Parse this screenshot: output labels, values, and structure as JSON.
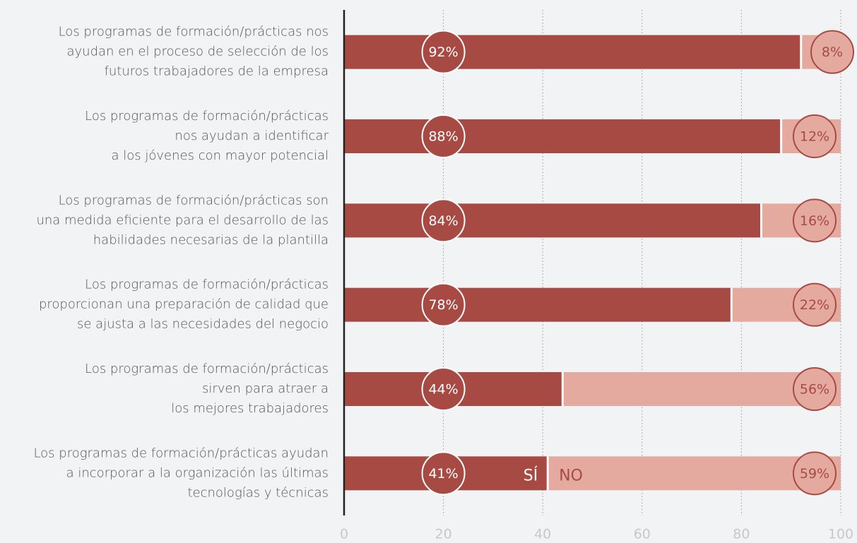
{
  "chart_data": {
    "type": "stacked_bar_horizontal",
    "categories": [
      "Los programas de formación/prácticas nos\nayudan en el proceso de selección de los\nfuturos trabajadores de la empresa",
      "Los programas de formación/prácticas\nnos ayudan a identificar\na los jóvenes con mayor potencial",
      "Los programas de formación/prácticas son\nuna medida eficiente para el desarrollo de las\nhabilidades necesarias de la plantilla",
      "Los programas de formación/prácticas\nproporcionan una preparación de calidad que\nse ajusta a las necesidades del negocio",
      "Los programas de formación/prácticas\nsirven para atraer a\nlos mejores trabajadores",
      "Los programas de formación/prácticas ayudan\na incorporar a la organización las últimas\ntecnologías y técnicas"
    ],
    "series": [
      {
        "name": "SÍ",
        "color": "#a84a44",
        "values": [
          92,
          88,
          84,
          78,
          44,
          41
        ],
        "value_labels": [
          "92%",
          "88%",
          "84%",
          "78%",
          "44%",
          "41%"
        ]
      },
      {
        "name": "NO",
        "color": "#e5aa9f",
        "values": [
          8,
          12,
          16,
          22,
          56,
          59
        ],
        "value_labels": [
          "8%",
          "12%",
          "16%",
          "22%",
          "56%",
          "59%"
        ]
      }
    ],
    "xlim": [
      0,
      100
    ],
    "xticks": [
      0,
      20,
      40,
      60,
      80,
      100
    ],
    "grid": true
  }
}
